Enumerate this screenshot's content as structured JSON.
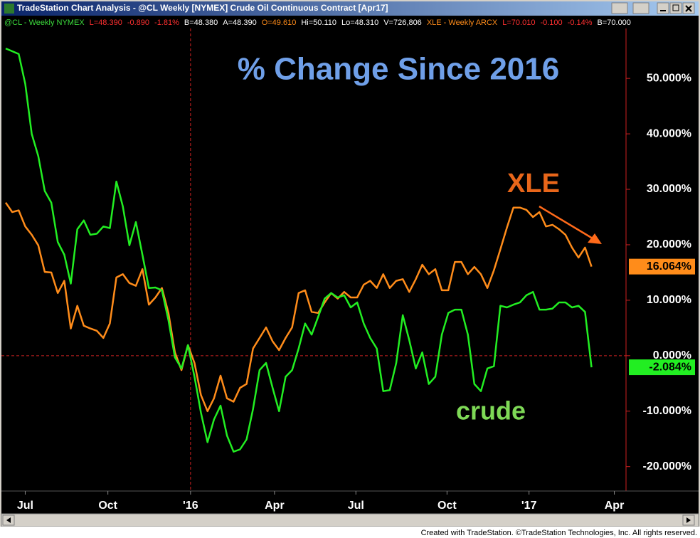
{
  "window_title": "TradeStation Chart Analysis - @CL Weekly [NYMEX] Crude Oil Continuous Contract [Apr17]",
  "info_bar": [
    {
      "text": "@CL - Weekly  NYMEX",
      "color": "#3cdc3c"
    },
    {
      "text": "L=48.390",
      "color": "#ff3030"
    },
    {
      "text": "-0.890",
      "color": "#ff3030"
    },
    {
      "text": "-1.81%",
      "color": "#ff3030"
    },
    {
      "text": "B=48.380",
      "color": "#ffffff"
    },
    {
      "text": "A=48.390",
      "color": "#ffffff"
    },
    {
      "text": "O=49.610",
      "color": "#ff8c1a"
    },
    {
      "text": "Hi=50.110",
      "color": "#ffffff"
    },
    {
      "text": "Lo=48.310",
      "color": "#ffffff"
    },
    {
      "text": "V=726,806",
      "color": "#ffffff"
    },
    {
      "text": "XLE - Weekly  ARCX",
      "color": "#ff8c1a"
    },
    {
      "text": "L=70.010",
      "color": "#ff3030"
    },
    {
      "text": "-0.100",
      "color": "#ff3030"
    },
    {
      "text": "-0.14%",
      "color": "#ff3030"
    },
    {
      "text": "B=70.000",
      "color": "#ffffff"
    }
  ],
  "footer": "Created with TradeStation. ©TradeStation Technologies, Inc. All rights reserved.",
  "chart_data": {
    "type": "line",
    "title": "% Change Since 2016",
    "annotations": [
      {
        "text": "XLE",
        "color": "#e8661a"
      },
      {
        "text": "crude",
        "color": "#7ed956"
      }
    ],
    "xlim": [
      0,
      95.3
    ],
    "xticks": [
      {
        "value": 3,
        "label": "Jul"
      },
      {
        "value": 15.7,
        "label": "Oct"
      },
      {
        "value": 28.4,
        "label": "'16"
      },
      {
        "value": 41.3,
        "label": "Apr"
      },
      {
        "value": 53.8,
        "label": "Jul"
      },
      {
        "value": 67.8,
        "label": "Oct"
      },
      {
        "value": 80.4,
        "label": "'17"
      },
      {
        "value": 93.5,
        "label": "Apr"
      }
    ],
    "ylim": [
      -24.4,
      59
    ],
    "yticks": [
      {
        "value": 50,
        "label": "50.000%"
      },
      {
        "value": 40,
        "label": "40.000%"
      },
      {
        "value": 30,
        "label": "30.000%"
      },
      {
        "value": 20,
        "label": "20.000%"
      },
      {
        "value": 10,
        "label": "10.000%"
      },
      {
        "value": 0,
        "label": "0.000%"
      },
      {
        "value": -10,
        "label": "-10.000%"
      },
      {
        "value": -20,
        "label": "-20.000%"
      }
    ],
    "series": [
      {
        "name": "XLE",
        "color": "#ff8c1a",
        "last_value_label": "16.064%",
        "values": [
          27.6,
          25.9,
          26.2,
          23.3,
          21.8,
          19.9,
          15.1,
          15,
          11.3,
          13.5,
          4.9,
          9,
          5.4,
          4.9,
          4.5,
          3.2,
          5.8,
          14.1,
          14.7,
          13.1,
          12.6,
          15.6,
          9.2,
          10.5,
          12.2,
          7.7,
          0.6,
          -2.6,
          1.9,
          -1.3,
          -7.1,
          -10,
          -7.7,
          -3.6,
          -7.7,
          -8.3,
          -5.8,
          -5.1,
          1.3,
          3.2,
          5.1,
          2.6,
          1,
          3.2,
          5.1,
          11.3,
          11.8,
          7.9,
          7.7,
          9.6,
          11.3,
          10.3,
          11.5,
          10.5,
          10.5,
          12.8,
          13.5,
          12.2,
          14.7,
          12.2,
          13.5,
          13.8,
          11.5,
          13.8,
          16.4,
          14.7,
          15.6,
          11.8,
          11.8,
          16.9,
          16.9,
          14.7,
          16,
          14.7,
          12.2,
          15.4,
          19.2,
          23.1,
          26.7,
          26.7,
          26.3,
          25,
          25.9,
          23.3,
          23.6,
          22.8,
          21.8,
          19.5,
          17.7,
          19.5,
          16.064
        ]
      },
      {
        "name": "@CL",
        "color": "#22ee22",
        "last_value_label": "-2.084%",
        "values": [
          55.4,
          54.9,
          54.4,
          49,
          40,
          36,
          29.7,
          27.6,
          20.5,
          18.2,
          13,
          22.8,
          24.4,
          21.8,
          22,
          23.3,
          23,
          31.4,
          26.9,
          19.9,
          24.1,
          18.2,
          12.2,
          12.3,
          11.8,
          6.4,
          -0.3,
          -2.3,
          1.9,
          -3.8,
          -10.3,
          -15.6,
          -11.5,
          -9,
          -14.4,
          -17.3,
          -16.9,
          -15.1,
          -9.6,
          -2.6,
          -1.3,
          -5.8,
          -10,
          -3.8,
          -2.6,
          1.3,
          5.8,
          3.8,
          7,
          10.3,
          11.3,
          10.5,
          10.9,
          8.7,
          9.6,
          5.8,
          3.2,
          1.3,
          -6.4,
          -6.2,
          -1.3,
          7.3,
          2.8,
          -2.3,
          0.6,
          -5.1,
          -3.8,
          3.8,
          7.7,
          8.3,
          8.3,
          3.8,
          -5.1,
          -6.4,
          -2.3,
          -1.9,
          9,
          8.7,
          9.2,
          9.6,
          10.9,
          11.5,
          8.3,
          8.3,
          8.5,
          9.6,
          9.6,
          8.7,
          9,
          7.9,
          -2.084
        ]
      }
    ]
  }
}
